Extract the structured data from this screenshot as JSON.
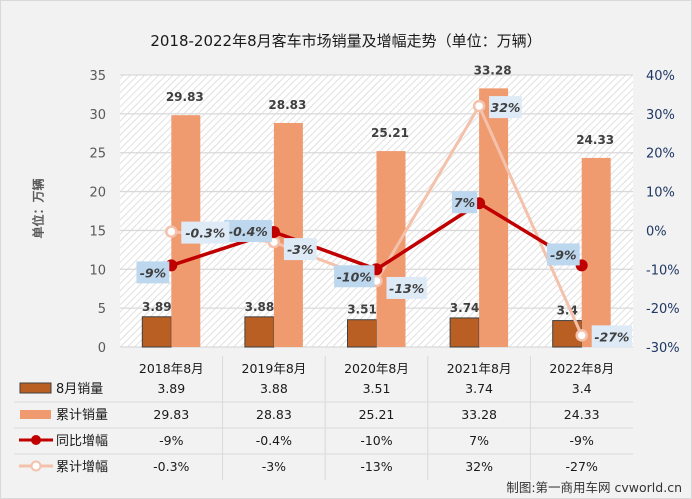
{
  "chart_data": {
    "type": "bar",
    "title": "2018-2022年8月客车市场销量及增幅走势（单位：万辆）",
    "ylabel": "单位：万辆",
    "ylim": [
      0,
      35
    ],
    "y_ticks": [
      "0",
      "5",
      "10",
      "15",
      "20",
      "25",
      "30",
      "35"
    ],
    "y2lim": [
      -30,
      40
    ],
    "y2_ticks": [
      "-30%",
      "-20%",
      "-10%",
      "0%",
      "10%",
      "20%",
      "30%",
      "40%"
    ],
    "grid": true,
    "categories": [
      "2018年8月",
      "2019年8月",
      "2020年8月",
      "2021年8月",
      "2022年8月"
    ],
    "series": [
      {
        "name": "8月销量",
        "kind": "bar",
        "axis": "left",
        "color": "#b95f24",
        "values": [
          3.89,
          3.88,
          3.51,
          3.74,
          3.4
        ],
        "labels": [
          "3.89",
          "3.88",
          "3.51",
          "3.74",
          "3.4"
        ]
      },
      {
        "name": "累计销量",
        "kind": "bar",
        "axis": "left",
        "color": "#f09a70",
        "values": [
          29.83,
          28.83,
          25.21,
          33.28,
          24.33
        ],
        "labels": [
          "29.83",
          "28.83",
          "25.21",
          "33.28",
          "24.33"
        ]
      },
      {
        "name": "同比增幅",
        "kind": "line",
        "axis": "right",
        "color": "#c00000",
        "marker": "filled-circle",
        "values": [
          -9,
          -0.4,
          -10,
          7,
          -9
        ],
        "labels": [
          "-9%",
          "-0.4%",
          "-10%",
          "7%",
          "-9%"
        ]
      },
      {
        "name": "累计增幅",
        "kind": "line",
        "axis": "right",
        "color": "#f4c1ab",
        "marker": "hollow-circle",
        "values": [
          -0.3,
          -3,
          -13,
          32,
          -27
        ],
        "labels": [
          "-0.3%",
          "-3%",
          "-13%",
          "32%",
          "-27%"
        ]
      }
    ],
    "data_table": {
      "rows": [
        {
          "legend": "8月销量",
          "cells": [
            "3.89",
            "3.88",
            "3.51",
            "3.74",
            "3.4"
          ]
        },
        {
          "legend": "累计销量",
          "cells": [
            "29.83",
            "28.83",
            "25.21",
            "33.28",
            "24.33"
          ]
        },
        {
          "legend": "同比增幅",
          "cells": [
            "-9%",
            "-0.4%",
            "-10%",
            "7%",
            "-9%"
          ]
        },
        {
          "legend": "累计增幅",
          "cells": [
            "-0.3%",
            "-3%",
            "-13%",
            "32%",
            "-27%"
          ]
        }
      ]
    }
  },
  "credit": "制图:第一商用车网 cvworld.cn"
}
